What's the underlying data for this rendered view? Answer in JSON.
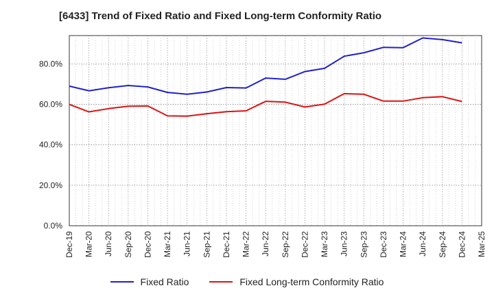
{
  "chart_data": {
    "type": "line",
    "title": "[6433]  Trend of Fixed Ratio and Fixed Long-term Conformity Ratio",
    "x": [
      "Dec-19",
      "Mar-20",
      "Jun-20",
      "Sep-20",
      "Dec-20",
      "Mar-21",
      "Jun-21",
      "Sep-21",
      "Dec-21",
      "Mar-22",
      "Jun-22",
      "Sep-22",
      "Dec-22",
      "Mar-23",
      "Jun-23",
      "Sep-23",
      "Dec-23",
      "Mar-24",
      "Jun-24",
      "Sep-24",
      "Dec-24",
      "Mar-25"
    ],
    "yticks": [
      "0.0%",
      "20.0%",
      "40.0%",
      "60.0%",
      "80.0%"
    ],
    "ylim": [
      0,
      94
    ],
    "grid": true,
    "legend_position": "bottom",
    "series": [
      {
        "name": "Fixed Ratio",
        "color": "#1f1fcc",
        "values": [
          69.0,
          66.7,
          68.2,
          69.3,
          68.6,
          65.9,
          65.0,
          66.1,
          68.3,
          68.1,
          73.0,
          72.4,
          76.2,
          77.8,
          83.8,
          85.5,
          88.2,
          88.0,
          92.8,
          92.0,
          90.4,
          null
        ]
      },
      {
        "name": "Fixed Long-term Conformity Ratio",
        "color": "#e01010",
        "values": [
          60.0,
          56.3,
          57.9,
          59.1,
          59.2,
          54.3,
          54.2,
          55.4,
          56.4,
          56.8,
          61.5,
          61.1,
          58.7,
          60.1,
          65.3,
          65.0,
          61.6,
          61.6,
          63.3,
          63.8,
          61.4,
          null
        ]
      }
    ]
  }
}
